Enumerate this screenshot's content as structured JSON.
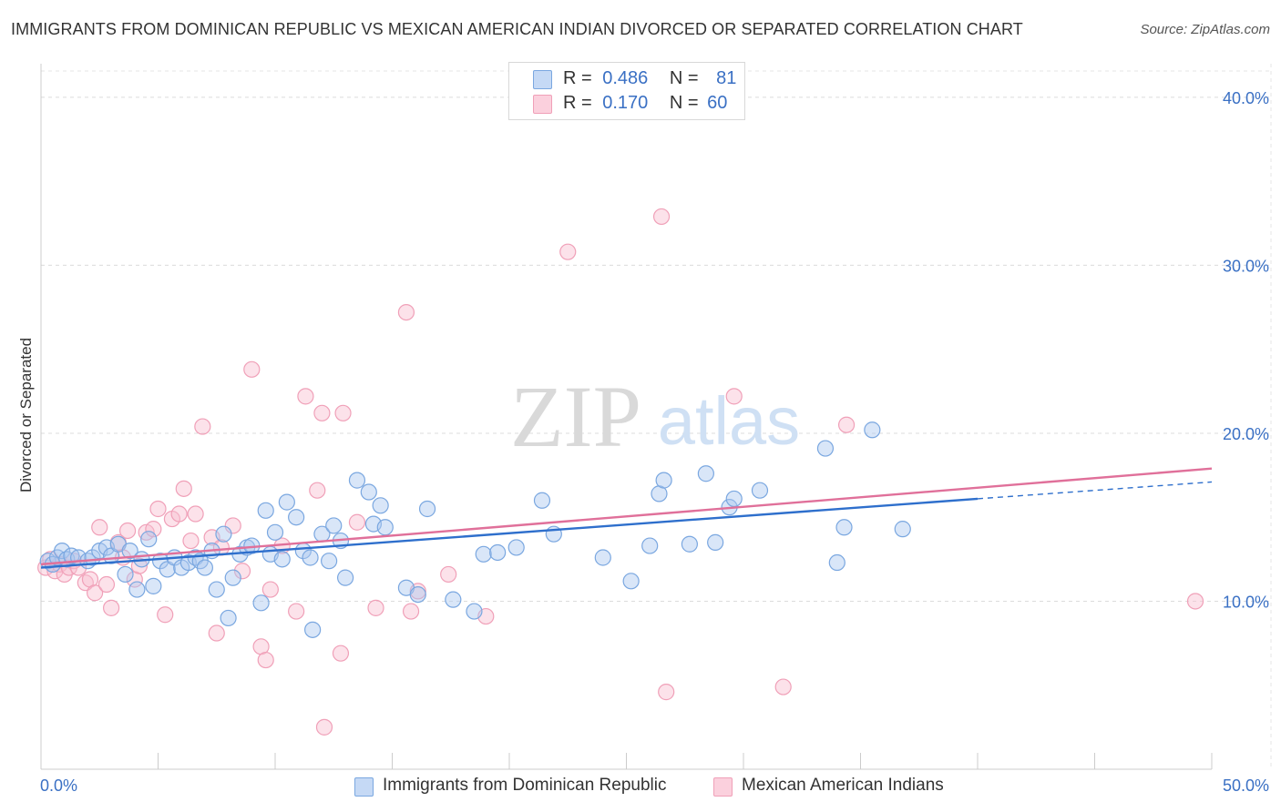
{
  "header": {
    "title": "IMMIGRANTS FROM DOMINICAN REPUBLIC VS MEXICAN AMERICAN INDIAN DIVORCED OR SEPARATED CORRELATION CHART",
    "source": "Source: ZipAtlas.com"
  },
  "watermark": {
    "zip": "ZIP",
    "atlas": "atlas"
  },
  "legend": {
    "series1": {
      "r_label": "R =",
      "r_value": "0.486",
      "n_label": "N =",
      "n_value": "81"
    },
    "series2": {
      "r_label": "R =",
      "r_value": "0.170",
      "n_label": "N =",
      "n_value": "60"
    }
  },
  "chart_data": {
    "type": "scatter",
    "title": "IMMIGRANTS FROM DOMINICAN REPUBLIC VS MEXICAN AMERICAN INDIAN DIVORCED OR SEPARATED CORRELATION CHART",
    "xlabel": "",
    "ylabel": "Divorced or Separated",
    "xlim": [
      0,
      50
    ],
    "ylim": [
      0,
      42
    ],
    "x_tick_labels": [
      "0.0%",
      "50.0%"
    ],
    "y_ticks": [
      10,
      20,
      30,
      40
    ],
    "y_tick_labels": [
      "10.0%",
      "20.0%",
      "30.0%",
      "40.0%"
    ],
    "grid": true,
    "legend_position": "top-center",
    "series": [
      {
        "name": "Immigrants from Dominican Republic",
        "color": "#7aa7e0",
        "line_color": "#2e6fcc",
        "r": 0.486,
        "n": 81,
        "trend": {
          "x0": 0,
          "y0": 12.0,
          "x1": 40,
          "y1": 16.1,
          "dash_x1": 50,
          "dash_y1": 17.1
        },
        "points": [
          [
            0.3,
            12.4
          ],
          [
            0.5,
            12.2
          ],
          [
            0.7,
            12.6
          ],
          [
            0.9,
            13.0
          ],
          [
            1.1,
            12.5
          ],
          [
            1.3,
            12.7
          ],
          [
            1.6,
            12.6
          ],
          [
            2.0,
            12.4
          ],
          [
            2.2,
            12.6
          ],
          [
            2.5,
            13.0
          ],
          [
            2.8,
            13.2
          ],
          [
            3.0,
            12.7
          ],
          [
            3.3,
            13.4
          ],
          [
            3.6,
            11.6
          ],
          [
            3.8,
            13.0
          ],
          [
            4.1,
            10.7
          ],
          [
            4.3,
            12.5
          ],
          [
            4.6,
            13.7
          ],
          [
            4.8,
            10.9
          ],
          [
            5.1,
            12.4
          ],
          [
            5.4,
            11.9
          ],
          [
            5.7,
            12.6
          ],
          [
            6.0,
            12.0
          ],
          [
            6.3,
            12.3
          ],
          [
            6.6,
            12.6
          ],
          [
            6.8,
            12.4
          ],
          [
            7.0,
            12.0
          ],
          [
            7.3,
            13.0
          ],
          [
            7.5,
            10.7
          ],
          [
            7.8,
            14.0
          ],
          [
            8.0,
            9.0
          ],
          [
            8.2,
            11.4
          ],
          [
            8.5,
            12.8
          ],
          [
            8.8,
            13.2
          ],
          [
            9.0,
            13.3
          ],
          [
            9.4,
            9.9
          ],
          [
            9.6,
            15.4
          ],
          [
            9.8,
            12.8
          ],
          [
            10.0,
            14.1
          ],
          [
            10.3,
            12.5
          ],
          [
            10.5,
            15.9
          ],
          [
            10.9,
            15.0
          ],
          [
            11.2,
            13.0
          ],
          [
            11.5,
            12.6
          ],
          [
            11.6,
            8.3
          ],
          [
            12.0,
            14.0
          ],
          [
            12.3,
            12.4
          ],
          [
            12.5,
            14.5
          ],
          [
            12.8,
            13.6
          ],
          [
            13.0,
            11.4
          ],
          [
            13.5,
            17.2
          ],
          [
            14.0,
            16.5
          ],
          [
            14.2,
            14.6
          ],
          [
            14.5,
            15.7
          ],
          [
            14.7,
            14.4
          ],
          [
            15.6,
            10.8
          ],
          [
            16.1,
            10.4
          ],
          [
            16.5,
            15.5
          ],
          [
            17.6,
            10.1
          ],
          [
            18.5,
            9.4
          ],
          [
            18.9,
            12.8
          ],
          [
            19.5,
            12.9
          ],
          [
            20.3,
            13.2
          ],
          [
            21.4,
            16.0
          ],
          [
            21.9,
            14.0
          ],
          [
            24.0,
            12.6
          ],
          [
            25.2,
            11.2
          ],
          [
            26.0,
            13.3
          ],
          [
            26.4,
            16.4
          ],
          [
            26.6,
            17.2
          ],
          [
            27.7,
            13.4
          ],
          [
            28.4,
            17.6
          ],
          [
            28.8,
            13.5
          ],
          [
            29.4,
            15.6
          ],
          [
            29.6,
            16.1
          ],
          [
            30.7,
            16.6
          ],
          [
            33.5,
            19.1
          ],
          [
            34.0,
            12.3
          ],
          [
            34.3,
            14.4
          ],
          [
            35.5,
            20.2
          ],
          [
            36.8,
            14.3
          ]
        ]
      },
      {
        "name": "Mexican American Indians",
        "color": "#f0a0b8",
        "line_color": "#e0709a",
        "r": 0.17,
        "n": 60,
        "trend": {
          "x0": 0,
          "y0": 12.2,
          "x1": 50,
          "y1": 17.9
        },
        "points": [
          [
            0.2,
            12.0
          ],
          [
            0.4,
            12.5
          ],
          [
            0.6,
            11.8
          ],
          [
            0.8,
            12.2
          ],
          [
            1.0,
            11.6
          ],
          [
            1.2,
            12.0
          ],
          [
            1.4,
            12.4
          ],
          [
            1.6,
            12.0
          ],
          [
            1.9,
            11.1
          ],
          [
            2.1,
            11.3
          ],
          [
            2.3,
            10.5
          ],
          [
            2.5,
            14.4
          ],
          [
            2.8,
            11.0
          ],
          [
            3.0,
            9.6
          ],
          [
            3.3,
            13.5
          ],
          [
            3.5,
            12.6
          ],
          [
            3.7,
            14.2
          ],
          [
            4.0,
            11.3
          ],
          [
            4.2,
            12.1
          ],
          [
            4.5,
            14.1
          ],
          [
            4.8,
            14.3
          ],
          [
            5.0,
            15.5
          ],
          [
            5.3,
            9.2
          ],
          [
            5.6,
            14.9
          ],
          [
            5.9,
            15.2
          ],
          [
            6.1,
            16.7
          ],
          [
            6.4,
            13.6
          ],
          [
            6.6,
            15.2
          ],
          [
            6.9,
            20.4
          ],
          [
            7.3,
            13.8
          ],
          [
            7.5,
            8.1
          ],
          [
            7.7,
            13.2
          ],
          [
            8.2,
            14.5
          ],
          [
            8.6,
            11.8
          ],
          [
            9.0,
            23.8
          ],
          [
            9.4,
            7.3
          ],
          [
            9.6,
            6.5
          ],
          [
            9.8,
            10.7
          ],
          [
            10.3,
            13.3
          ],
          [
            10.9,
            9.4
          ],
          [
            11.3,
            22.2
          ],
          [
            11.8,
            16.6
          ],
          [
            12.0,
            21.2
          ],
          [
            12.8,
            6.9
          ],
          [
            12.9,
            21.2
          ],
          [
            13.5,
            14.7
          ],
          [
            14.3,
            9.6
          ],
          [
            15.6,
            27.2
          ],
          [
            15.8,
            9.4
          ],
          [
            16.1,
            10.6
          ],
          [
            17.4,
            11.6
          ],
          [
            19.0,
            9.1
          ],
          [
            22.5,
            30.8
          ],
          [
            26.5,
            32.9
          ],
          [
            26.7,
            4.6
          ],
          [
            29.6,
            22.2
          ],
          [
            31.7,
            4.9
          ],
          [
            34.4,
            20.5
          ],
          [
            49.3,
            10.0
          ],
          [
            12.1,
            2.5
          ]
        ]
      }
    ]
  }
}
